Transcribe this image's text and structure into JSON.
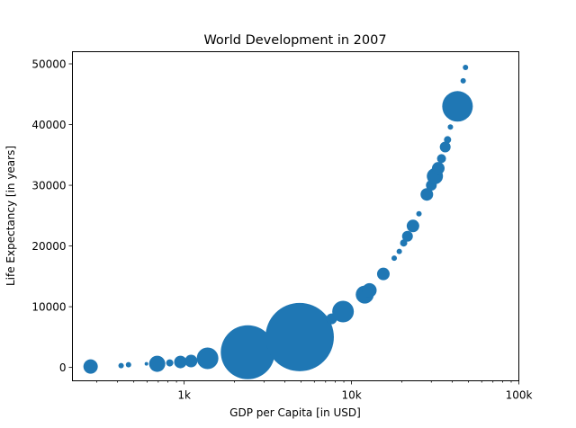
{
  "chart_data": {
    "type": "scatter",
    "title": "World Development in 2007",
    "xlabel": "GDP per Capita [in USD]",
    "ylabel": "Life Expectancy [in years]",
    "xscale": "log",
    "xlim": [
      215,
      100000
    ],
    "ylim": [
      -2200,
      52000
    ],
    "xticks": [
      {
        "value": 1000,
        "label": "1k"
      },
      {
        "value": 10000,
        "label": "10k"
      },
      {
        "value": 100000,
        "label": "100k"
      }
    ],
    "yticks": [
      {
        "value": 0,
        "label": "0"
      },
      {
        "value": 10000,
        "label": "10000"
      },
      {
        "value": 20000,
        "label": "20000"
      },
      {
        "value": 30000,
        "label": "30000"
      },
      {
        "value": 40000,
        "label": "40000"
      },
      {
        "value": 50000,
        "label": "50000"
      }
    ],
    "grid": false,
    "legend": "none",
    "marker_color": "#1f77b4",
    "series": [
      {
        "name": "countries",
        "points": [
          {
            "x": 276,
            "y": 150,
            "size": 8
          },
          {
            "x": 420,
            "y": 300,
            "size": 3
          },
          {
            "x": 465,
            "y": 450,
            "size": 3
          },
          {
            "x": 595,
            "y": 600,
            "size": 2
          },
          {
            "x": 690,
            "y": 600,
            "size": 9
          },
          {
            "x": 820,
            "y": 750,
            "size": 4
          },
          {
            "x": 950,
            "y": 900,
            "size": 7
          },
          {
            "x": 1100,
            "y": 1050,
            "size": 7
          },
          {
            "x": 1380,
            "y": 1500,
            "size": 12
          },
          {
            "x": 2400,
            "y": 2500,
            "size": 30
          },
          {
            "x": 4900,
            "y": 5000,
            "size": 38
          },
          {
            "x": 7600,
            "y": 8000,
            "size": 6
          },
          {
            "x": 8900,
            "y": 9200,
            "size": 12
          },
          {
            "x": 12000,
            "y": 12000,
            "size": 10
          },
          {
            "x": 12800,
            "y": 12700,
            "size": 8
          },
          {
            "x": 15500,
            "y": 15400,
            "size": 7
          },
          {
            "x": 18000,
            "y": 18000,
            "size": 3
          },
          {
            "x": 19300,
            "y": 19100,
            "size": 3
          },
          {
            "x": 20500,
            "y": 20500,
            "size": 4
          },
          {
            "x": 21600,
            "y": 21600,
            "size": 6
          },
          {
            "x": 23300,
            "y": 23300,
            "size": 7
          },
          {
            "x": 25300,
            "y": 25300,
            "size": 3
          },
          {
            "x": 28200,
            "y": 28500,
            "size": 7
          },
          {
            "x": 30000,
            "y": 30000,
            "size": 6
          },
          {
            "x": 31500,
            "y": 31500,
            "size": 9
          },
          {
            "x": 33000,
            "y": 32800,
            "size": 7
          },
          {
            "x": 34500,
            "y": 34400,
            "size": 5
          },
          {
            "x": 36300,
            "y": 36300,
            "size": 6
          },
          {
            "x": 37500,
            "y": 37500,
            "size": 4
          },
          {
            "x": 39000,
            "y": 39600,
            "size": 3
          },
          {
            "x": 43000,
            "y": 43000,
            "size": 17
          },
          {
            "x": 46500,
            "y": 47200,
            "size": 3
          },
          {
            "x": 48000,
            "y": 49400,
            "size": 3
          }
        ]
      }
    ]
  }
}
